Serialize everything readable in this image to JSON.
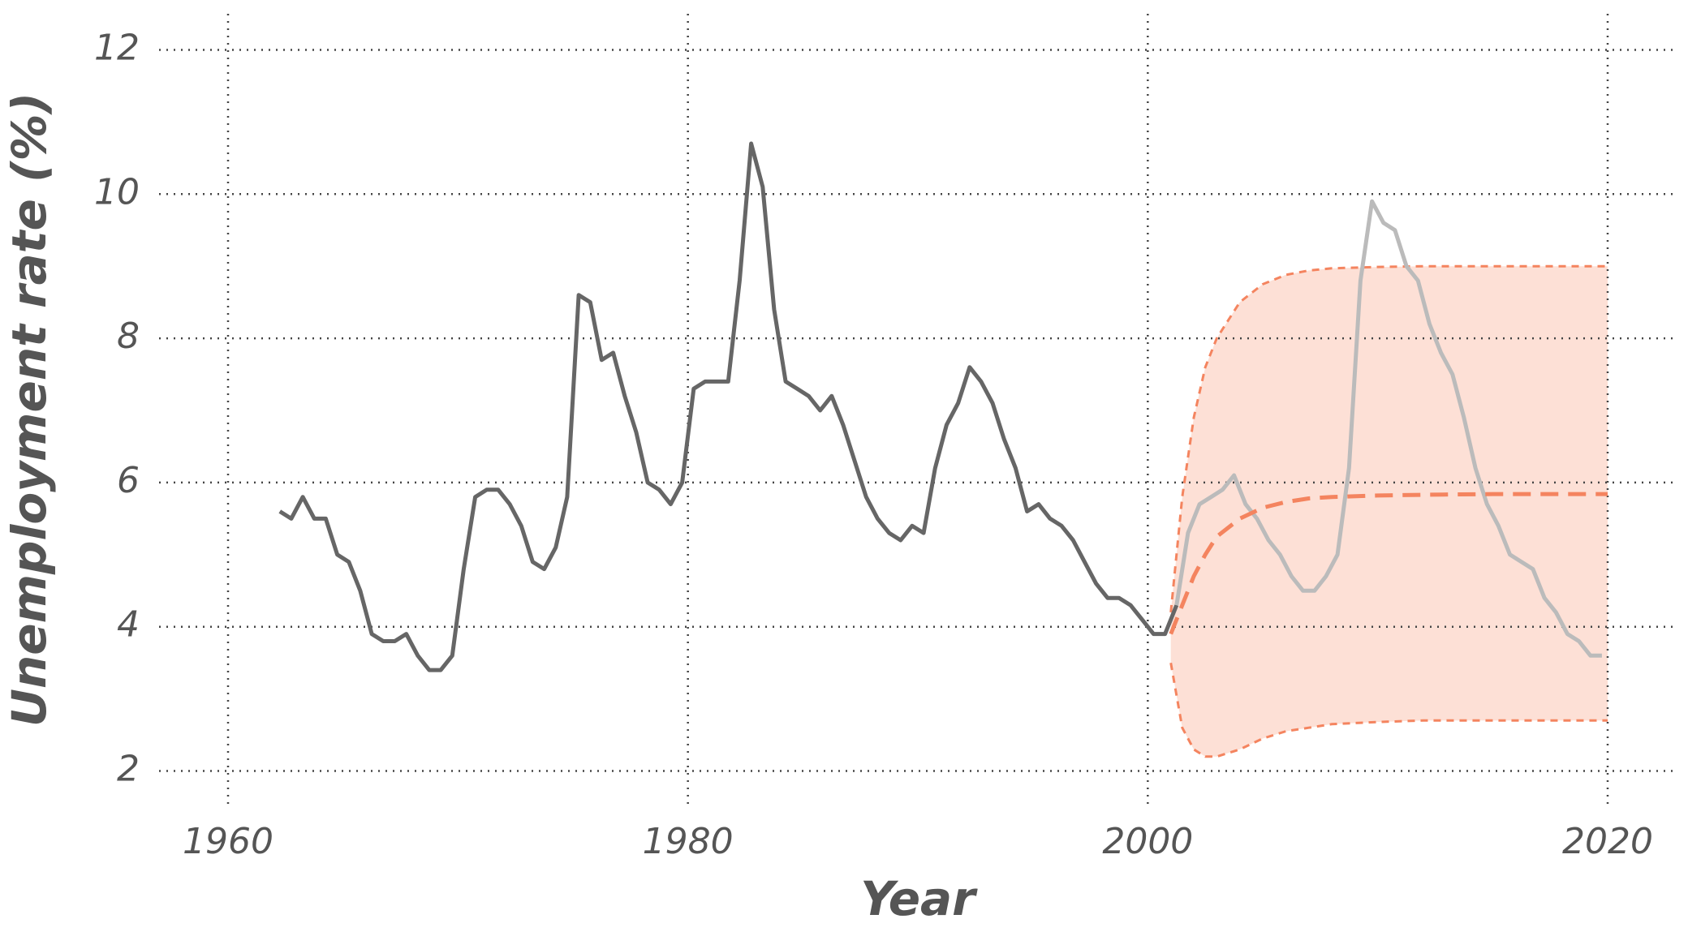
{
  "chart_data": {
    "type": "line",
    "xlabel": "Year",
    "ylabel": "Unemployment rate (%)",
    "xlim": [
      1957,
      2023
    ],
    "ylim": [
      1.5,
      12.5
    ],
    "xticks": [
      1960,
      1980,
      2000,
      2020
    ],
    "yticks": [
      2,
      4,
      6,
      8,
      10,
      12
    ],
    "grid": true,
    "series": [
      {
        "color": "#666666",
        "dash": "none",
        "x": [
          1962.25,
          1962.75,
          1963.25,
          1963.75,
          1964.25,
          1964.75,
          1965.25,
          1965.75,
          1966.25,
          1966.75,
          1967.25,
          1967.75,
          1968.25,
          1968.75,
          1969.25,
          1969.75,
          1970.25,
          1970.75,
          1971.25,
          1971.75,
          1972.25,
          1972.75,
          1973.25,
          1973.75,
          1974.25,
          1974.75,
          1975.25,
          1975.75,
          1976.25,
          1976.75,
          1977.25,
          1977.75,
          1978.25,
          1978.75,
          1979.25,
          1979.75,
          1980.25,
          1980.75,
          1981.25,
          1981.75,
          1982.25,
          1982.75,
          1983.25,
          1983.75,
          1984.25,
          1984.75,
          1985.25,
          1985.75,
          1986.25,
          1986.75,
          1987.25,
          1987.75,
          1988.25,
          1988.75,
          1989.25,
          1989.75,
          1990.25,
          1990.75,
          1991.25,
          1991.75,
          1992.25,
          1992.75,
          1993.25,
          1993.75,
          1994.25,
          1994.75,
          1995.25,
          1995.75,
          1996.25,
          1996.75,
          1997.25,
          1997.75,
          1998.25,
          1998.75,
          1999.25,
          1999.75,
          2000.25,
          2000.75,
          2001.25
        ],
        "values": [
          5.6,
          5.5,
          5.8,
          5.5,
          5.5,
          5.0,
          4.9,
          4.5,
          3.9,
          3.8,
          3.8,
          3.9,
          3.6,
          3.4,
          3.4,
          3.6,
          4.8,
          5.8,
          5.9,
          5.9,
          5.7,
          5.4,
          4.9,
          4.8,
          5.1,
          5.8,
          8.6,
          8.5,
          7.7,
          7.8,
          7.2,
          6.7,
          6.0,
          5.9,
          5.7,
          6.0,
          7.3,
          7.4,
          7.4,
          7.4,
          8.8,
          10.7,
          10.1,
          8.4,
          7.4,
          7.3,
          7.2,
          7.0,
          7.2,
          6.8,
          6.3,
          5.8,
          5.5,
          5.3,
          5.2,
          5.4,
          5.3,
          6.2,
          6.8,
          7.1,
          7.6,
          7.4,
          7.1,
          6.6,
          6.2,
          5.6,
          5.7,
          5.5,
          5.4,
          5.2,
          4.9,
          4.6,
          4.4,
          4.4,
          4.3,
          4.1,
          3.9,
          3.9,
          4.3
        ]
      },
      {
        "color": "#bbbbbb",
        "dash": "none",
        "x": [
          2001.25,
          2001.75,
          2002.25,
          2002.75,
          2003.25,
          2003.75,
          2004.25,
          2004.75,
          2005.25,
          2005.75,
          2006.25,
          2006.75,
          2007.25,
          2007.75,
          2008.25,
          2008.75,
          2009.25,
          2009.75,
          2010.25,
          2010.75,
          2011.25,
          2011.75,
          2012.25,
          2012.75,
          2013.25,
          2013.75,
          2014.25,
          2014.75,
          2015.25,
          2015.75,
          2016.25,
          2016.75,
          2017.25,
          2017.75,
          2018.25,
          2018.75,
          2019.25,
          2019.75
        ],
        "values": [
          4.3,
          5.3,
          5.7,
          5.8,
          5.9,
          6.1,
          5.7,
          5.5,
          5.2,
          5.0,
          4.7,
          4.5,
          4.5,
          4.7,
          5.0,
          6.2,
          8.8,
          9.9,
          9.6,
          9.5,
          9.0,
          8.8,
          8.2,
          7.8,
          7.5,
          6.9,
          6.2,
          5.7,
          5.4,
          5.0,
          4.9,
          4.8,
          4.4,
          4.2,
          3.9,
          3.8,
          3.6,
          3.6
        ]
      },
      {
        "color": "#f4845f",
        "dash": "22 12",
        "x": [
          2001,
          2001.5,
          2002,
          2002.5,
          2003,
          2004,
          2005,
          2006,
          2007,
          2008,
          2010,
          2012,
          2015,
          2020
        ],
        "values": [
          3.9,
          4.3,
          4.7,
          5.0,
          5.25,
          5.5,
          5.65,
          5.73,
          5.78,
          5.8,
          5.82,
          5.83,
          5.84,
          5.84
        ]
      }
    ],
    "band": {
      "color": "#fde0d6",
      "edge_color": "#f4845f",
      "x": [
        2001,
        2001.5,
        2002,
        2002.5,
        2003,
        2004,
        2005,
        2006,
        2007,
        2008,
        2010,
        2012,
        2015,
        2020
      ],
      "upper": [
        4.2,
        5.8,
        6.9,
        7.6,
        8.0,
        8.5,
        8.75,
        8.88,
        8.94,
        8.97,
        8.99,
        9.0,
        9.0,
        9.0
      ],
      "lower": [
        3.5,
        2.6,
        2.3,
        2.2,
        2.2,
        2.3,
        2.45,
        2.55,
        2.6,
        2.65,
        2.68,
        2.7,
        2.7,
        2.7
      ]
    }
  }
}
